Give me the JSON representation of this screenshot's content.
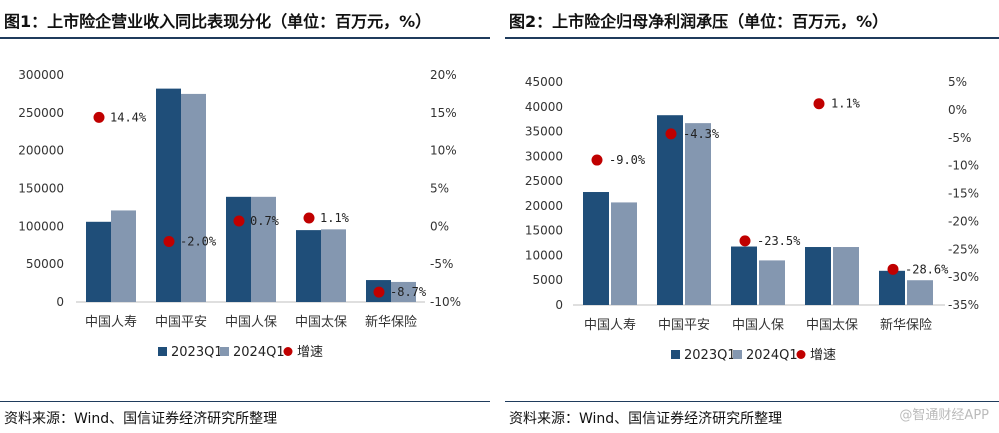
{
  "colors": {
    "series2023": "#1f4e79",
    "series2024": "#8497b0",
    "growth": "#c00000"
  },
  "panels": [
    {
      "title": "图1：上市险企营业收入同比表现分化（单位：百万元，%）",
      "source": "资料来源：Wind、国信证券经济研究所整理",
      "chart_data": {
        "type": "bar",
        "title": "图1：上市险企营业收入同比表现分化（单位：百万元，%）",
        "categories": [
          "中国人寿",
          "中国平安",
          "中国人保",
          "中国太保",
          "新华保险"
        ],
        "series": [
          {
            "name": "2023Q1",
            "values": [
              106000,
              282000,
              139000,
              95000,
              29000
            ]
          },
          {
            "name": "2024Q1",
            "values": [
              121000,
              275000,
              139000,
              96000,
              26500
            ]
          },
          {
            "name": "增速",
            "axis": "right",
            "render": "dot",
            "values": [
              14.4,
              -2.0,
              0.7,
              1.1,
              -8.7
            ],
            "labels": [
              "14.4%",
              "-2.0%",
              "0.7%",
              "1.1%",
              "-8.7%"
            ]
          }
        ],
        "ylim": [
          0,
          300000
        ],
        "yticks": [
          "300000",
          "250000",
          "200000",
          "150000",
          "100000",
          "50000",
          "0"
        ],
        "y2lim": [
          -10,
          20
        ],
        "y2ticks": [
          "20%",
          "15%",
          "10%",
          "5%",
          "0%",
          "-5%",
          "-10%"
        ],
        "legend": [
          "2023Q1",
          "2024Q1",
          "增速"
        ],
        "legend_position": "bottom"
      }
    },
    {
      "title": "图2：上市险企归母净利润承压（单位：百万元，%）",
      "source": "资料来源：Wind、国信证券经济研究所整理",
      "chart_data": {
        "type": "bar",
        "title": "图2：上市险企归母净利润承压（单位：百万元，%）",
        "categories": [
          "中国人寿",
          "中国平安",
          "中国人保",
          "中国太保",
          "新华保险"
        ],
        "series": [
          {
            "name": "2023Q1",
            "values": [
              22800,
              38300,
              11800,
              11700,
              6900
            ]
          },
          {
            "name": "2024Q1",
            "values": [
              20700,
              36700,
              9000,
              11700,
              5000
            ]
          },
          {
            "name": "增速",
            "axis": "right",
            "render": "dot",
            "values": [
              -9.0,
              -4.3,
              -23.5,
              1.1,
              -28.6
            ],
            "labels": [
              "-9.0%",
              "-4.3%",
              "-23.5%",
              "1.1%",
              "-28.6%"
            ]
          }
        ],
        "ylim": [
          0,
          45000
        ],
        "yticks": [
          "45000",
          "40000",
          "35000",
          "30000",
          "25000",
          "20000",
          "15000",
          "10000",
          "5000",
          "0"
        ],
        "y2lim": [
          -35,
          5
        ],
        "y2ticks": [
          "5%",
          "0%",
          "-5%",
          "-10%",
          "-15%",
          "-20%",
          "-25%",
          "-30%",
          "-35%"
        ],
        "legend": [
          "2023Q1",
          "2024Q1",
          "增速"
        ],
        "legend_position": "bottom"
      }
    }
  ],
  "watermark": "@智通财经APP"
}
